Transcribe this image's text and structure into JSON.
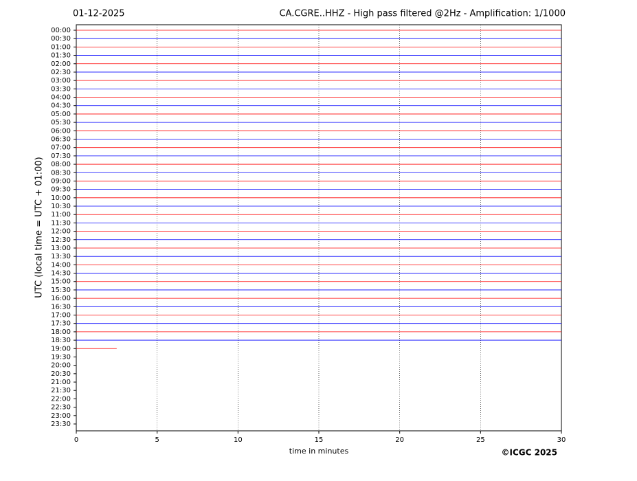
{
  "chart_data": {
    "type": "helicorder",
    "title_left": "01-12-2025",
    "title": "CA.CGRE..HHZ - High pass filtered @2Hz - Amplification: 1/1000",
    "ylabel": "UTC (local time = UTC + 01:00)",
    "xlabel": "time in minutes",
    "copyright": "©ICGC 2025",
    "categories": [
      "00:00",
      "00:30",
      "01:00",
      "01:30",
      "02:00",
      "02:30",
      "03:00",
      "03:30",
      "04:00",
      "04:30",
      "05:00",
      "05:30",
      "06:00",
      "06:30",
      "07:00",
      "07:30",
      "08:00",
      "08:30",
      "09:00",
      "09:30",
      "10:00",
      "10:30",
      "11:00",
      "11:30",
      "12:00",
      "12:30",
      "13:00",
      "13:30",
      "14:00",
      "14:30",
      "15:00",
      "15:30",
      "16:00",
      "16:30",
      "17:00",
      "17:30",
      "18:00",
      "18:30",
      "19:00",
      "19:30",
      "20:00",
      "20:30",
      "21:00",
      "21:30",
      "22:00",
      "22:30",
      "23:00",
      "23:30"
    ],
    "trace_colors": [
      "#ff0000",
      "#0000ff"
    ],
    "trace_ends": [
      30,
      30,
      30,
      30,
      30,
      30,
      30,
      30,
      30,
      30,
      30,
      30,
      30,
      30,
      30,
      30,
      30,
      30,
      30,
      30,
      30,
      30,
      30,
      30,
      30,
      30,
      30,
      30,
      30,
      30,
      30,
      30,
      30,
      30,
      30,
      30,
      30,
      30,
      2.5
    ],
    "xlim": [
      0,
      30
    ],
    "xticks": [
      0,
      5,
      10,
      15,
      20,
      25,
      30
    ],
    "grid": true
  }
}
